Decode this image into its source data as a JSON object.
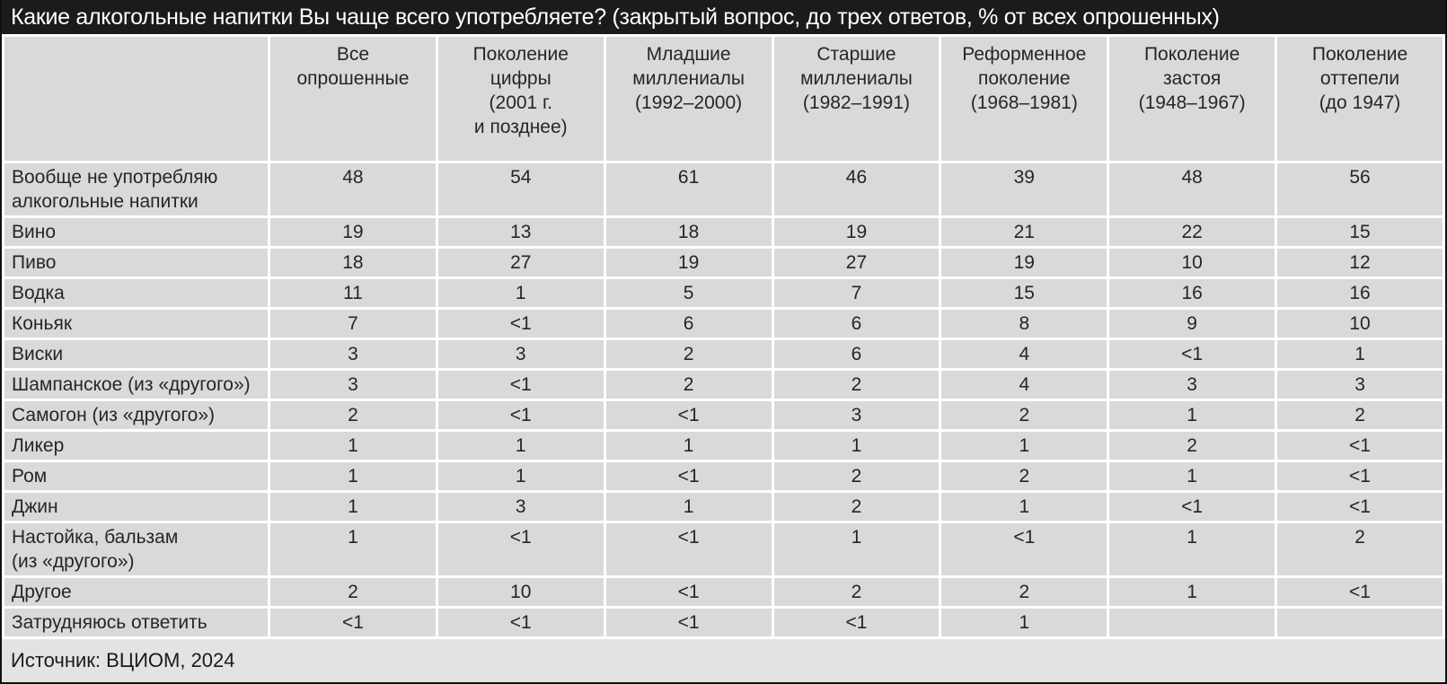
{
  "page": {
    "title": "Какие алкогольные напитки Вы чаще всего употребляете? (закрытый вопрос, до трех ответов, % от всех опрошенных)",
    "source": "Источник: ВЦИОМ, 2024"
  },
  "colors": {
    "title_bar_bg": "#1b1b1b",
    "title_text": "#ffffff",
    "cell_bg": "#d9d9d9",
    "separator": "#ffffff",
    "footer_bg": "#e3e3e3",
    "text": "#262626"
  },
  "chart_data": {
    "type": "table",
    "title": "Какие алкогольные напитки Вы чаще всего употребляете? (закрытый вопрос, до трех ответов, % от всех опрошенных)",
    "source": "Источник: ВЦИОМ, 2024",
    "columns": [
      "Все\nопрошенные",
      "Поколение\nцифры\n(2001 г.\nи позднее)",
      "Младшие\nмиллениалы\n(1992–2000)",
      "Старшие\nмиллениалы\n(1982–1991)",
      "Реформенное\nпоколение\n(1968–1981)",
      "Поколение\nзастоя\n(1948–1967)",
      "Поколение\nоттепели\n(до 1947)"
    ],
    "rows": [
      {
        "label": "Вообще не употребляю\nалкогольные напитки",
        "values": [
          "48",
          "54",
          "61",
          "46",
          "39",
          "48",
          "56"
        ]
      },
      {
        "label": "Вино",
        "values": [
          "19",
          "13",
          "18",
          "19",
          "21",
          "22",
          "15"
        ]
      },
      {
        "label": "Пиво",
        "values": [
          "18",
          "27",
          "19",
          "27",
          "19",
          "10",
          "12"
        ]
      },
      {
        "label": "Водка",
        "values": [
          "11",
          "1",
          "5",
          "7",
          "15",
          "16",
          "16"
        ]
      },
      {
        "label": "Коньяк",
        "values": [
          "7",
          "<1",
          "6",
          "6",
          "8",
          "9",
          "10"
        ]
      },
      {
        "label": "Виски",
        "values": [
          "3",
          "3",
          "2",
          "6",
          "4",
          "<1",
          "1"
        ]
      },
      {
        "label": "Шампанское (из «другого»)",
        "values": [
          "3",
          "<1",
          "2",
          "2",
          "4",
          "3",
          "3"
        ]
      },
      {
        "label": "Самогон (из «другого»)",
        "values": [
          "2",
          "<1",
          "<1",
          "3",
          "2",
          "1",
          "2"
        ]
      },
      {
        "label": "Ликер",
        "values": [
          "1",
          "1",
          "1",
          "1",
          "1",
          "2",
          "<1"
        ]
      },
      {
        "label": "Ром",
        "values": [
          "1",
          "1",
          "<1",
          "2",
          "2",
          "1",
          "<1"
        ]
      },
      {
        "label": "Джин",
        "values": [
          "1",
          "3",
          "1",
          "2",
          "1",
          "<1",
          "<1"
        ]
      },
      {
        "label": "Настойка, бальзам\n(из «другого»)",
        "values": [
          "1",
          "<1",
          "<1",
          "1",
          "<1",
          "1",
          "2"
        ]
      },
      {
        "label": "Другое",
        "values": [
          "2",
          "10",
          "<1",
          "2",
          "2",
          "1",
          "<1"
        ]
      },
      {
        "label": "Затрудняюсь ответить",
        "values": [
          "<1",
          "<1",
          "<1",
          "<1",
          "1",
          "",
          ""
        ]
      }
    ]
  }
}
